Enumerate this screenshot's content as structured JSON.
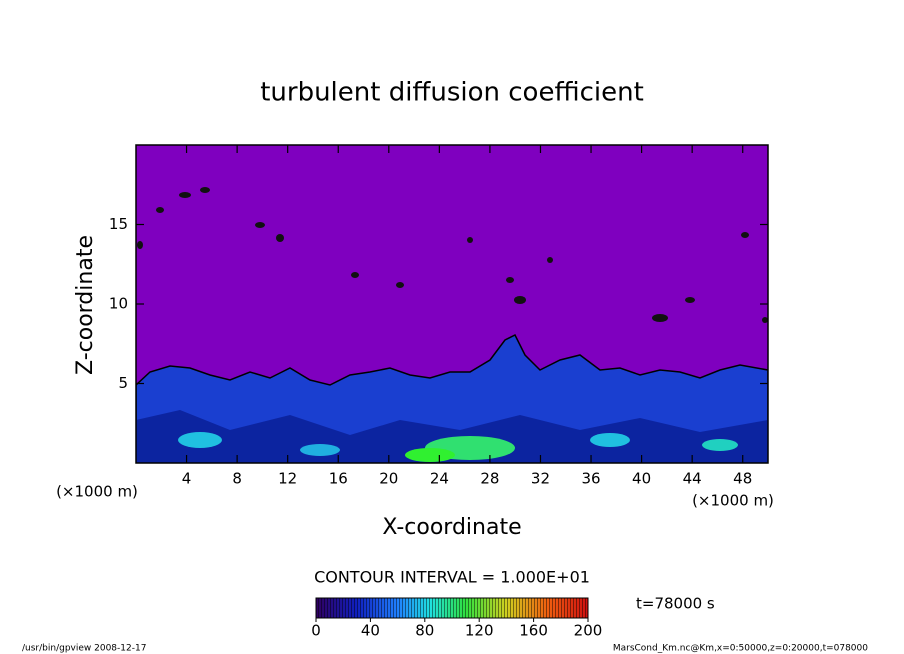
{
  "chart_data": {
    "type": "contour",
    "title": "turbulent diffusion coefficient",
    "xlabel": "X-coordinate",
    "ylabel": "Z-coordinate",
    "x_unit_label": "(×1000 m)",
    "xlim": [
      0,
      50
    ],
    "xticks": [
      4,
      8,
      12,
      16,
      20,
      24,
      28,
      32,
      36,
      40,
      44,
      48
    ],
    "ylim": [
      0,
      20
    ],
    "yticks": [
      5,
      10,
      15
    ],
    "contour_interval_label": "CONTOUR INTERVAL = 1.000E+01",
    "time_label": "t=78000 s",
    "colorbar_lim": [
      0,
      200
    ],
    "colorbar_ticks": [
      0,
      40,
      80,
      120,
      160,
      200
    ],
    "footer_left": "/usr/bin/gpview  2008-12-17",
    "footer_right": "MarsCond_Km.nc@Km,x=0:50000,z=0:20000,t=078000"
  }
}
